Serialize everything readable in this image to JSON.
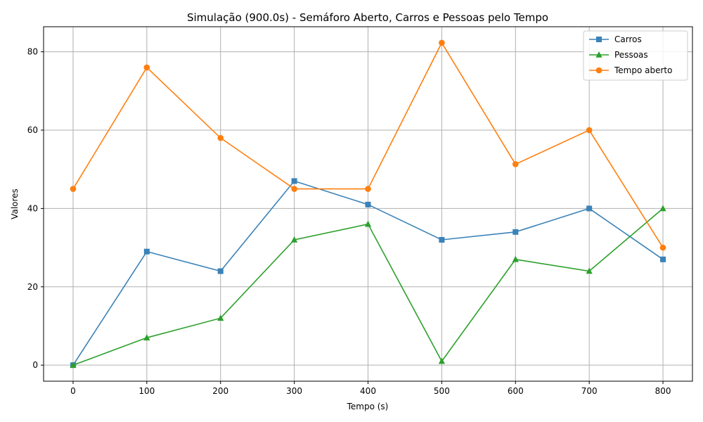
{
  "chart_data": {
    "type": "line",
    "title": "Simulação (900.0s) - Semáforo Aberto, Carros e Pessoas pelo Tempo",
    "xlabel": "Tempo (s)",
    "ylabel": "Valores",
    "x": [
      0,
      100,
      200,
      300,
      400,
      500,
      600,
      700,
      800
    ],
    "xlim": [
      -40,
      840
    ],
    "ylim": [
      -4.1,
      86.4
    ],
    "xticks": [
      0,
      100,
      200,
      300,
      400,
      500,
      600,
      700,
      800
    ],
    "yticks": [
      0,
      20,
      40,
      60,
      80
    ],
    "grid": true,
    "legend_position": "top-right",
    "series": [
      {
        "name": "Carros",
        "color": "#3a82b8",
        "marker": "square",
        "values": [
          0,
          29,
          24,
          47,
          41,
          32,
          34,
          40,
          27
        ]
      },
      {
        "name": "Pessoas",
        "color": "#2ca02c",
        "marker": "triangle",
        "values": [
          0,
          7,
          12,
          32,
          36,
          1,
          27,
          24,
          40
        ]
      },
      {
        "name": "Tempo aberto",
        "color": "#ff7f0e",
        "marker": "circle",
        "values": [
          45,
          76,
          58,
          45,
          45,
          82.3,
          51.3,
          60,
          30
        ]
      }
    ]
  }
}
